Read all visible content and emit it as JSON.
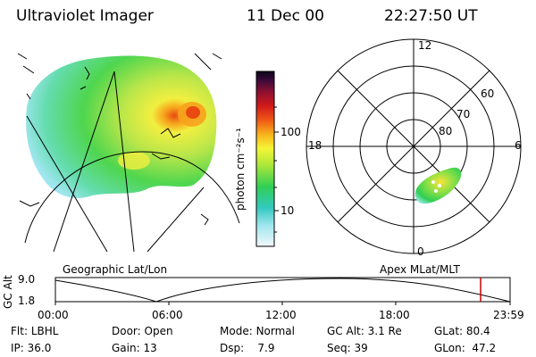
{
  "header": {
    "instrument": "Ultraviolet Imager",
    "date": "11 Dec 00",
    "time": "22:27:50 UT"
  },
  "colorbar": {
    "unit_label": "photon cm⁻²s⁻¹",
    "ticks": [
      "100",
      "10"
    ]
  },
  "polar_plot": {
    "mlt_labels": [
      "12",
      "18",
      "6",
      "0"
    ],
    "lat_labels": [
      "60",
      "70",
      "80"
    ]
  },
  "orbit": {
    "left_title": "Geographic Lat/Lon",
    "right_title": "Apex MLat/MLT",
    "y_axis_label": "GC Alt",
    "y_ticks": [
      "9.0",
      "1.8"
    ],
    "x_ticks": [
      "00:00",
      "06:00",
      "12:00",
      "18:00",
      "23:59"
    ]
  },
  "status": {
    "row1": [
      {
        "label": "Flt:",
        "value": "LBHL"
      },
      {
        "label": "Door:",
        "value": "Open"
      },
      {
        "label": "Mode:",
        "value": "Normal"
      },
      {
        "label": "GC Alt:",
        "value": "3.1 Re"
      },
      {
        "label": "GLat:",
        "value": "80.4"
      }
    ],
    "row2": [
      {
        "label": "IP:",
        "value": "36.0"
      },
      {
        "label": "Gain:",
        "value": "13"
      },
      {
        "label": "Dsp:",
        "value": "7.9"
      },
      {
        "label": "Seq:",
        "value": "39"
      },
      {
        "label": "GLon:",
        "value": "47.2"
      }
    ]
  },
  "colors": {
    "marker": "#cc0000"
  }
}
